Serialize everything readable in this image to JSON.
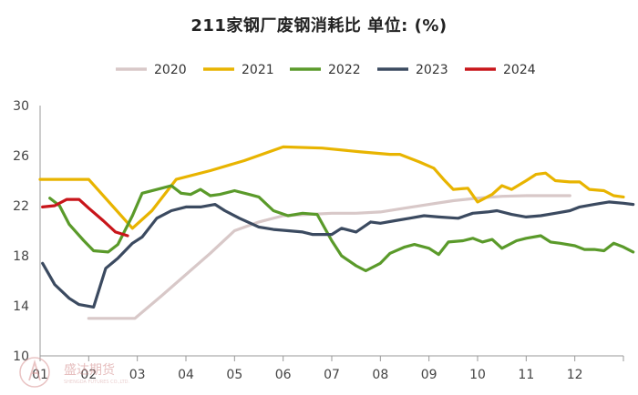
{
  "chart_data": {
    "type": "line",
    "title": "211家钢厂废钢消耗比  单位: (%)",
    "xlabel": "",
    "ylabel": "",
    "ylim": [
      10,
      30
    ],
    "yticks": [
      10,
      14,
      18,
      22,
      26,
      30
    ],
    "xlim": [
      1,
      13
    ],
    "xticks": [
      "01",
      "02",
      "03",
      "04",
      "05",
      "06",
      "07",
      "08",
      "09",
      "10",
      "11",
      "12"
    ],
    "grid": false,
    "legend_position": "top",
    "series": [
      {
        "name": "2020",
        "color": "#d8c8c8",
        "points": [
          [
            2.0,
            13.0
          ],
          [
            2.95,
            13.0
          ],
          [
            3.5,
            14.8
          ],
          [
            4.5,
            18.2
          ],
          [
            5.0,
            20.0
          ],
          [
            5.5,
            20.7
          ],
          [
            6.0,
            21.2
          ],
          [
            6.5,
            21.3
          ],
          [
            7.0,
            21.4
          ],
          [
            7.5,
            21.4
          ],
          [
            8.0,
            21.5
          ],
          [
            8.5,
            21.8
          ],
          [
            9.0,
            22.1
          ],
          [
            9.5,
            22.4
          ],
          [
            10.0,
            22.6
          ],
          [
            10.5,
            22.75
          ],
          [
            11.0,
            22.8
          ],
          [
            11.5,
            22.8
          ],
          [
            11.9,
            22.8
          ]
        ]
      },
      {
        "name": "2021",
        "color": "#e8b400",
        "points": [
          [
            1.0,
            24.1
          ],
          [
            2.0,
            24.1
          ],
          [
            2.9,
            20.2
          ],
          [
            3.3,
            21.6
          ],
          [
            3.8,
            24.1
          ],
          [
            4.5,
            24.8
          ],
          [
            5.2,
            25.6
          ],
          [
            6.0,
            26.7
          ],
          [
            6.8,
            26.6
          ],
          [
            7.6,
            26.3
          ],
          [
            8.2,
            26.1
          ],
          [
            8.4,
            26.1
          ],
          [
            8.8,
            25.5
          ],
          [
            9.1,
            25.0
          ],
          [
            9.3,
            24.1
          ],
          [
            9.5,
            23.3
          ],
          [
            9.8,
            23.4
          ],
          [
            10.0,
            22.3
          ],
          [
            10.3,
            22.9
          ],
          [
            10.5,
            23.6
          ],
          [
            10.7,
            23.3
          ],
          [
            11.0,
            24.0
          ],
          [
            11.2,
            24.5
          ],
          [
            11.4,
            24.6
          ],
          [
            11.6,
            24.0
          ],
          [
            11.9,
            23.9
          ],
          [
            12.1,
            23.9
          ],
          [
            12.3,
            23.3
          ],
          [
            12.6,
            23.2
          ],
          [
            12.8,
            22.8
          ],
          [
            13.0,
            22.7
          ]
        ]
      },
      {
        "name": "2022",
        "color": "#5a9a2a",
        "points": [
          [
            1.2,
            22.6
          ],
          [
            1.4,
            22.0
          ],
          [
            1.6,
            20.5
          ],
          [
            1.9,
            19.2
          ],
          [
            2.1,
            18.4
          ],
          [
            2.4,
            18.3
          ],
          [
            2.6,
            18.9
          ],
          [
            2.9,
            21.2
          ],
          [
            3.1,
            23.0
          ],
          [
            3.5,
            23.4
          ],
          [
            3.7,
            23.6
          ],
          [
            3.9,
            23.0
          ],
          [
            4.1,
            22.9
          ],
          [
            4.3,
            23.3
          ],
          [
            4.5,
            22.8
          ],
          [
            4.7,
            22.9
          ],
          [
            5.0,
            23.2
          ],
          [
            5.3,
            22.9
          ],
          [
            5.5,
            22.7
          ],
          [
            5.8,
            21.6
          ],
          [
            6.1,
            21.2
          ],
          [
            6.4,
            21.4
          ],
          [
            6.7,
            21.3
          ],
          [
            7.0,
            19.2
          ],
          [
            7.2,
            18.0
          ],
          [
            7.5,
            17.2
          ],
          [
            7.7,
            16.8
          ],
          [
            8.0,
            17.4
          ],
          [
            8.2,
            18.2
          ],
          [
            8.5,
            18.7
          ],
          [
            8.7,
            18.9
          ],
          [
            9.0,
            18.6
          ],
          [
            9.2,
            18.1
          ],
          [
            9.4,
            19.1
          ],
          [
            9.7,
            19.2
          ],
          [
            9.9,
            19.4
          ],
          [
            10.1,
            19.1
          ],
          [
            10.3,
            19.3
          ],
          [
            10.5,
            18.6
          ],
          [
            10.8,
            19.2
          ],
          [
            11.0,
            19.4
          ],
          [
            11.3,
            19.6
          ],
          [
            11.5,
            19.1
          ],
          [
            11.7,
            19.0
          ],
          [
            12.0,
            18.8
          ],
          [
            12.2,
            18.5
          ],
          [
            12.4,
            18.5
          ],
          [
            12.6,
            18.4
          ],
          [
            12.8,
            19.0
          ],
          [
            13.0,
            18.7
          ],
          [
            13.2,
            18.3
          ]
        ]
      },
      {
        "name": "2023",
        "color": "#3b4a60",
        "points": [
          [
            1.05,
            17.4
          ],
          [
            1.3,
            15.7
          ],
          [
            1.6,
            14.6
          ],
          [
            1.8,
            14.1
          ],
          [
            2.1,
            13.9
          ],
          [
            2.35,
            17.0
          ],
          [
            2.6,
            17.8
          ],
          [
            2.9,
            19.0
          ],
          [
            3.1,
            19.5
          ],
          [
            3.4,
            21.0
          ],
          [
            3.7,
            21.6
          ],
          [
            4.0,
            21.9
          ],
          [
            4.3,
            21.9
          ],
          [
            4.6,
            22.1
          ],
          [
            4.8,
            21.6
          ],
          [
            5.1,
            21.0
          ],
          [
            5.5,
            20.3
          ],
          [
            5.8,
            20.1
          ],
          [
            6.1,
            20.0
          ],
          [
            6.4,
            19.9
          ],
          [
            6.6,
            19.7
          ],
          [
            7.0,
            19.7
          ],
          [
            7.2,
            20.2
          ],
          [
            7.5,
            19.9
          ],
          [
            7.8,
            20.7
          ],
          [
            8.0,
            20.6
          ],
          [
            8.3,
            20.8
          ],
          [
            8.6,
            21.0
          ],
          [
            8.9,
            21.2
          ],
          [
            9.2,
            21.1
          ],
          [
            9.6,
            21.0
          ],
          [
            9.9,
            21.4
          ],
          [
            10.2,
            21.5
          ],
          [
            10.4,
            21.6
          ],
          [
            10.7,
            21.3
          ],
          [
            11.0,
            21.1
          ],
          [
            11.3,
            21.2
          ],
          [
            11.6,
            21.4
          ],
          [
            11.9,
            21.6
          ],
          [
            12.1,
            21.9
          ],
          [
            12.4,
            22.1
          ],
          [
            12.7,
            22.3
          ],
          [
            13.0,
            22.2
          ],
          [
            13.2,
            22.1
          ]
        ]
      },
      {
        "name": "2024",
        "color": "#c8151a",
        "points": [
          [
            1.05,
            21.9
          ],
          [
            1.3,
            22.0
          ],
          [
            1.55,
            22.5
          ],
          [
            1.8,
            22.5
          ],
          [
            2.0,
            21.8
          ],
          [
            2.3,
            20.8
          ],
          [
            2.55,
            19.9
          ],
          [
            2.8,
            19.6
          ]
        ]
      }
    ]
  },
  "watermark": {
    "text": "盛达期货",
    "subtext": "SHENGDA FUTURES CO.,LTD."
  }
}
